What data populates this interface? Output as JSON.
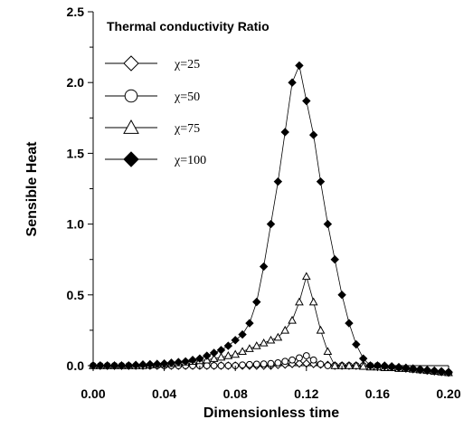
{
  "chart_data": {
    "type": "line",
    "xlabel": "Dimensionless time",
    "ylabel": "Sensible Heat",
    "xlim": [
      0.0,
      0.2
    ],
    "ylim": [
      0.0,
      2.5
    ],
    "xticks": [
      0.0,
      0.04,
      0.08,
      0.12,
      0.16,
      0.2
    ],
    "xtick_labels": [
      "0.00",
      "0.04",
      "0.08",
      "0.12",
      "0.16",
      "0.20"
    ],
    "yticks": [
      0.0,
      0.5,
      1.0,
      1.5,
      2.0,
      2.5
    ],
    "ytick_labels": [
      "0.0",
      "0.5",
      "1.0",
      "1.5",
      "2.0",
      "2.5"
    ],
    "legend_title": "Thermal conductivity Ratio",
    "legend_position": "top-left",
    "grid": false,
    "series": [
      {
        "name": "χ=25",
        "marker": "diamond-open",
        "x": [
          0.0,
          0.004,
          0.008,
          0.012,
          0.016,
          0.02,
          0.024,
          0.028,
          0.032,
          0.036,
          0.04,
          0.044,
          0.048,
          0.052,
          0.056,
          0.06,
          0.064,
          0.068,
          0.072,
          0.076,
          0.08,
          0.084,
          0.088,
          0.092,
          0.096,
          0.1,
          0.104,
          0.108,
          0.112,
          0.116,
          0.12,
          0.124,
          0.128,
          0.132,
          0.136,
          0.14,
          0.144,
          0.148,
          0.152,
          0.156,
          0.16,
          0.164,
          0.168,
          0.172,
          0.176,
          0.18,
          0.184,
          0.188,
          0.192,
          0.196,
          0.2
        ],
        "y": [
          0.0,
          0.0,
          0.0,
          0.0,
          0.0,
          0.0,
          0.0,
          0.0,
          0.0,
          0.0,
          0.0,
          0.0,
          0.0,
          0.0,
          0.0,
          0.0,
          0.0,
          0.0,
          0.0,
          0.0,
          0.0,
          0.0,
          0.0,
          0.0,
          0.0,
          0.0,
          0.005,
          0.008,
          0.012,
          0.015,
          0.015,
          0.012,
          0.008,
          0.005,
          0.0,
          0.0,
          0.0,
          0.0,
          0.0,
          0.0,
          0.0,
          0.0,
          -0.005,
          -0.01,
          -0.015,
          -0.02,
          -0.025,
          -0.03,
          -0.035,
          -0.04,
          -0.045
        ]
      },
      {
        "name": "χ=50",
        "marker": "circle-open",
        "x": [
          0.0,
          0.004,
          0.008,
          0.012,
          0.016,
          0.02,
          0.024,
          0.028,
          0.032,
          0.036,
          0.04,
          0.044,
          0.048,
          0.052,
          0.056,
          0.06,
          0.064,
          0.068,
          0.072,
          0.076,
          0.08,
          0.084,
          0.088,
          0.092,
          0.096,
          0.1,
          0.104,
          0.108,
          0.112,
          0.116,
          0.12,
          0.124,
          0.128,
          0.132,
          0.136,
          0.14,
          0.144,
          0.148,
          0.152,
          0.156,
          0.16,
          0.164,
          0.168,
          0.172,
          0.176,
          0.18,
          0.184,
          0.188,
          0.192,
          0.196,
          0.2
        ],
        "y": [
          0.0,
          0.0,
          0.0,
          0.0,
          0.0,
          0.0,
          0.0,
          0.0,
          0.0,
          0.0,
          0.0,
          0.0,
          0.0,
          0.0,
          0.0,
          0.0,
          0.0,
          0.0,
          0.0,
          0.0,
          0.0,
          0.005,
          0.008,
          0.01,
          0.012,
          0.015,
          0.02,
          0.03,
          0.04,
          0.055,
          0.07,
          0.04,
          0.01,
          0.0,
          0.0,
          0.0,
          0.0,
          0.0,
          0.0,
          0.0,
          0.0,
          -0.005,
          -0.01,
          -0.015,
          -0.02,
          -0.025,
          -0.03,
          -0.035,
          -0.04,
          -0.045,
          -0.05
        ]
      },
      {
        "name": "χ=75",
        "marker": "triangle-open",
        "x": [
          0.0,
          0.004,
          0.008,
          0.012,
          0.016,
          0.02,
          0.024,
          0.028,
          0.032,
          0.036,
          0.04,
          0.044,
          0.048,
          0.052,
          0.056,
          0.06,
          0.064,
          0.068,
          0.072,
          0.076,
          0.08,
          0.084,
          0.088,
          0.092,
          0.096,
          0.1,
          0.104,
          0.108,
          0.112,
          0.116,
          0.12,
          0.124,
          0.128,
          0.132,
          0.136,
          0.14,
          0.144,
          0.148,
          0.152,
          0.156,
          0.16,
          0.164,
          0.168,
          0.172,
          0.176,
          0.18,
          0.184,
          0.188,
          0.192,
          0.196,
          0.2
        ],
        "y": [
          0.0,
          0.0,
          0.0,
          0.0,
          0.0,
          0.0,
          0.0,
          0.0,
          0.005,
          0.01,
          0.012,
          0.015,
          0.02,
          0.025,
          0.03,
          0.035,
          0.04,
          0.05,
          0.06,
          0.07,
          0.08,
          0.1,
          0.12,
          0.14,
          0.16,
          0.18,
          0.2,
          0.25,
          0.32,
          0.45,
          0.63,
          0.45,
          0.25,
          0.1,
          0.0,
          0.0,
          0.0,
          0.0,
          -0.005,
          -0.01,
          -0.01,
          -0.015,
          -0.015,
          -0.02,
          -0.02,
          -0.025,
          -0.03,
          -0.035,
          -0.04,
          -0.045,
          -0.05
        ]
      },
      {
        "name": "χ=100",
        "marker": "diamond-filled",
        "x": [
          0.0,
          0.004,
          0.008,
          0.012,
          0.016,
          0.02,
          0.024,
          0.028,
          0.032,
          0.036,
          0.04,
          0.044,
          0.048,
          0.052,
          0.056,
          0.06,
          0.064,
          0.068,
          0.072,
          0.076,
          0.08,
          0.084,
          0.088,
          0.092,
          0.096,
          0.1,
          0.104,
          0.108,
          0.112,
          0.116,
          0.12,
          0.124,
          0.128,
          0.132,
          0.136,
          0.14,
          0.144,
          0.148,
          0.152,
          0.156,
          0.16,
          0.164,
          0.168,
          0.172,
          0.176,
          0.18,
          0.184,
          0.188,
          0.192,
          0.196,
          0.2
        ],
        "y": [
          0.0,
          0.0,
          0.0,
          0.0,
          0.0,
          0.0,
          0.005,
          0.008,
          0.01,
          0.012,
          0.015,
          0.02,
          0.025,
          0.03,
          0.04,
          0.05,
          0.07,
          0.09,
          0.11,
          0.14,
          0.18,
          0.22,
          0.3,
          0.45,
          0.7,
          1.0,
          1.3,
          1.65,
          2.0,
          2.12,
          1.87,
          1.63,
          1.3,
          1.0,
          0.75,
          0.5,
          0.3,
          0.15,
          0.05,
          0.0,
          0.0,
          -0.005,
          -0.01,
          -0.015,
          -0.02,
          -0.025,
          -0.03,
          -0.035,
          -0.04,
          -0.045,
          -0.05
        ]
      }
    ]
  }
}
